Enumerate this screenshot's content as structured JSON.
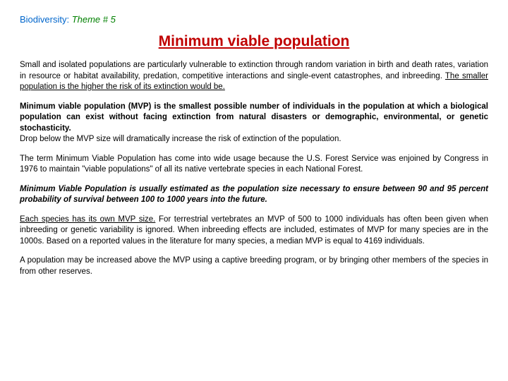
{
  "header": {
    "label": "Biodiversity:",
    "theme": "Theme # 5"
  },
  "title": "Minimum viable population",
  "paragraphs": {
    "p1_a": "Small and isolated populations are particularly vulnerable to extinction through random variation in birth and death rates, variation in resource or habitat availability, predation, competitive interactions and single-event catastrophes, and inbreeding. ",
    "p1_b": "The smaller population is the higher the risk of its extinction would be.",
    "p2_a": "Minimum viable population (MVP) is the smallest possible number of individuals in the population at which a biological population can exist without facing extinction from natural disasters or demographic, environmental, or genetic stochasticity.",
    "p2_b": "Drop below the MVP size will dramatically increase the risk of extinction of the population.",
    "p3": "The term Minimum Viable Population has come into wide usage because the U.S. Forest Service was enjoined by Congress in 1976 to maintain \"viable populations\" of all its native vertebrate species in each National Forest.",
    "p4": "Minimum Viable Population is usually estimated as the population size necessary to ensure between 90 and 95 percent probability of survival between 100 to 1000 years into the future.",
    "p5_a": "Each species has its own MVP size.",
    "p5_b": " For terrestrial vertebrates an MVP of 500 to 1000 individuals has often been given when inbreeding or genetic variability is ignored. When inbreeding effects are included, estimates of MVP for many species are in the 1000s. Based on a reported values in the literature for many species, a median MVP is equal to 4169 individuals.",
    "p6": "A population may be increased above the MVP using a captive breeding program, or by bringing other members of the species in from other reserves."
  },
  "colors": {
    "header_label": "#0066cc",
    "header_theme": "#008000",
    "title": "#c00000",
    "body_text": "#000000",
    "background": "#ffffff"
  },
  "typography": {
    "title_fontsize": 21,
    "body_fontsize": 11.5,
    "header_fontsize": 13,
    "font_family": "Arial"
  }
}
